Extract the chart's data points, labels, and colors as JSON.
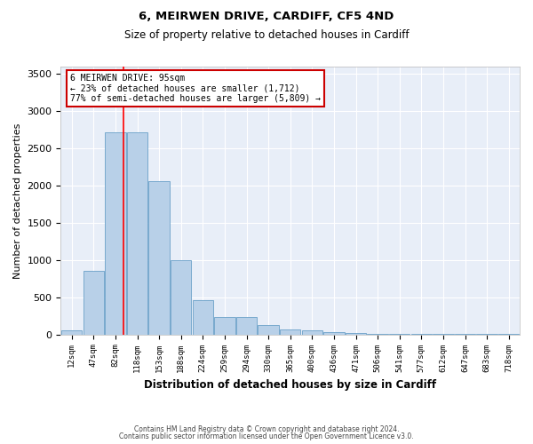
{
  "title1": "6, MEIRWEN DRIVE, CARDIFF, CF5 4ND",
  "title2": "Size of property relative to detached houses in Cardiff",
  "xlabel": "Distribution of detached houses by size in Cardiff",
  "ylabel": "Number of detached properties",
  "bar_color": "#b8d0e8",
  "bar_edge_color": "#6aa0c8",
  "background_color": "#e8eef8",
  "categories": [
    "12sqm",
    "47sqm",
    "82sqm",
    "118sqm",
    "153sqm",
    "188sqm",
    "224sqm",
    "259sqm",
    "294sqm",
    "330sqm",
    "365sqm",
    "400sqm",
    "436sqm",
    "471sqm",
    "506sqm",
    "541sqm",
    "577sqm",
    "612sqm",
    "647sqm",
    "683sqm",
    "718sqm"
  ],
  "values": [
    60,
    850,
    2720,
    2720,
    2060,
    1000,
    460,
    230,
    230,
    130,
    70,
    55,
    35,
    20,
    8,
    5,
    5,
    3,
    3,
    3,
    3
  ],
  "ylim": [
    0,
    3600
  ],
  "yticks": [
    0,
    500,
    1000,
    1500,
    2000,
    2500,
    3000,
    3500
  ],
  "vline_pos": 2.37,
  "annotation_title": "6 MEIRWEN DRIVE: 95sqm",
  "annotation_line1": "← 23% of detached houses are smaller (1,712)",
  "annotation_line2": "77% of semi-detached houses are larger (5,809) →",
  "annotation_box_color": "#ffffff",
  "annotation_border_color": "#cc0000",
  "footer1": "Contains HM Land Registry data © Crown copyright and database right 2024.",
  "footer2": "Contains public sector information licensed under the Open Government Licence v3.0."
}
